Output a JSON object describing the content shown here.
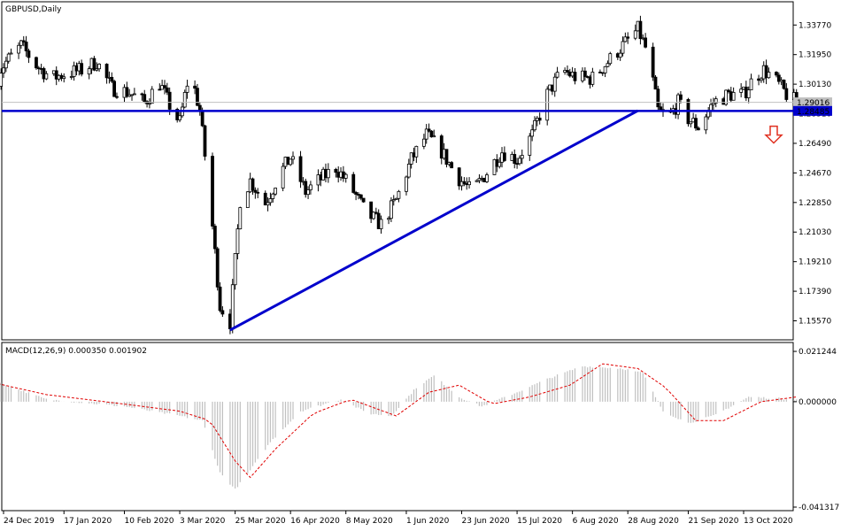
{
  "chart_data": [
    {
      "type": "candlestick",
      "title": "GBPUSD,Daily",
      "y_ticks": [
        1.3377,
        1.3195,
        1.3013,
        1.2831,
        1.2649,
        1.2467,
        1.2285,
        1.2103,
        1.1921,
        1.1739,
        1.1557
      ],
      "y_tick_labels": [
        "1.33770",
        "1.31950",
        "1.30130",
        "1.28310",
        "1.26490",
        "1.24670",
        "1.22850",
        "1.21030",
        "1.19210",
        "1.17390",
        "1.15570"
      ],
      "ylim": [
        1.144,
        1.352
      ],
      "x_tick_labels": [
        "24 Dec 2019",
        "17 Jan 2020",
        "10 Feb 2020",
        "3 Mar 2020",
        "25 Mar 2020",
        "16 Apr 2020",
        "8 May 2020",
        "1 Jun 2020",
        "23 Jun 2020",
        "15 Jul 2020",
        "6 Aug 2020",
        "28 Aug 2020",
        "21 Sep 2020",
        "13 Oct 2020"
      ],
      "price_labels": [
        {
          "value": 1.29016,
          "text": "1.29016",
          "color": "#c0c0c0"
        },
        {
          "value": 1.28485,
          "text": "1.28485",
          "color": "#0000cc"
        }
      ],
      "horizontal_lines": [
        {
          "value": 1.28485,
          "color": "#0000cc"
        },
        {
          "value": 1.29016,
          "color": "#c0c0c0"
        }
      ],
      "trendline": {
        "from": {
          "date": "23 Mar 2020",
          "value": 1.15
        },
        "to": {
          "date": "1 Sep 2020",
          "value": 1.285
        },
        "color": "#0000cc"
      },
      "annotation": {
        "type": "arrow-down",
        "color": "#e03020",
        "value": 1.27
      },
      "anchors": [
        [
          "20 Dec 2019",
          1.305
        ],
        [
          "25 Dec 2019",
          1.315
        ],
        [
          "31 Dec 2019",
          1.325
        ],
        [
          "6 Jan 2020",
          1.313
        ],
        [
          "12 Jan 2020",
          1.305
        ],
        [
          "18 Jan 2020",
          1.308
        ],
        [
          "24 Jan 2020",
          1.31
        ],
        [
          "30 Jan 2020",
          1.315
        ],
        [
          "5 Feb 2020",
          1.299
        ],
        [
          "12 Feb 2020",
          1.296
        ],
        [
          "18 Feb 2020",
          1.29
        ],
        [
          "24 Feb 2020",
          1.302
        ],
        [
          "29 Feb 2020",
          1.285
        ],
        [
          "3 Mar 2020",
          1.278
        ],
        [
          "7 Mar 2020",
          1.31
        ],
        [
          "11 Mar 2020",
          1.285
        ],
        [
          "15 Mar 2020",
          1.23
        ],
        [
          "19 Mar 2020",
          1.165
        ],
        [
          "23 Mar 2020",
          1.155
        ],
        [
          "27 Mar 2020",
          1.23
        ],
        [
          "31 Mar 2020",
          1.242
        ],
        [
          "6 Apr 2020",
          1.228
        ],
        [
          "12 Apr 2020",
          1.247
        ],
        [
          "16 Apr 2020",
          1.256
        ],
        [
          "22 Apr 2020",
          1.235
        ],
        [
          "28 Apr 2020",
          1.243
        ],
        [
          "4 May 2020",
          1.25
        ],
        [
          "10 May 2020",
          1.238
        ],
        [
          "16 May 2020",
          1.222
        ],
        [
          "22 May 2020",
          1.215
        ],
        [
          "28 May 2020",
          1.23
        ],
        [
          "3 Jun 2020",
          1.255
        ],
        [
          "9 Jun 2020",
          1.27
        ],
        [
          "15 Jun 2020",
          1.26
        ],
        [
          "21 Jun 2020",
          1.245
        ],
        [
          "27 Jun 2020",
          1.235
        ],
        [
          "3 Jul 2020",
          1.247
        ],
        [
          "9 Jul 2020",
          1.26
        ],
        [
          "15 Jul 2020",
          1.255
        ],
        [
          "21 Jul 2020",
          1.27
        ],
        [
          "27 Jul 2020",
          1.295
        ],
        [
          "2 Aug 2020",
          1.31
        ],
        [
          "8 Aug 2020",
          1.305
        ],
        [
          "14 Aug 2020",
          1.305
        ],
        [
          "20 Aug 2020",
          1.315
        ],
        [
          "26 Aug 2020",
          1.325
        ],
        [
          "1 Sep 2020",
          1.335
        ],
        [
          "5 Sep 2020",
          1.32
        ],
        [
          "9 Sep 2020",
          1.285
        ],
        [
          "13 Sep 2020",
          1.28
        ],
        [
          "17 Sep 2020",
          1.29
        ],
        [
          "21 Sep 2020",
          1.28
        ],
        [
          "25 Sep 2020",
          1.275
        ],
        [
          "1 Oct 2020",
          1.29
        ],
        [
          "7 Oct 2020",
          1.295
        ],
        [
          "13 Oct 2020",
          1.295
        ],
        [
          "17 Oct 2020",
          1.305
        ],
        [
          "21 Oct 2020",
          1.31
        ],
        [
          "25 Oct 2020",
          1.305
        ],
        [
          "30 Oct 2020",
          1.295
        ],
        [
          "3 Nov 2020",
          1.29
        ]
      ]
    },
    {
      "type": "macd",
      "label": "MACD(12,26,9) 0.000350 0.001902",
      "y_tick_labels": [
        "0.021244",
        "0.000000",
        "-0.041317"
      ],
      "y_ticks": [
        0.021244,
        0.0,
        -0.041317
      ],
      "ylim": [
        -0.046,
        0.025
      ],
      "histogram_color": "#c0c0c0",
      "signal_color": "#e00000",
      "macd_anchors": [
        [
          "20 Dec 2019",
          0.009
        ],
        [
          "10 Jan 2020",
          0.001
        ],
        [
          "10 Feb 2020",
          -0.002
        ],
        [
          "3 Mar 2020",
          -0.006
        ],
        [
          "12 Mar 2020",
          -0.008
        ],
        [
          "19 Mar 2020",
          -0.03
        ],
        [
          "25 Mar 2020",
          -0.037
        ],
        [
          "31 Mar 2020",
          -0.029
        ],
        [
          "8 Apr 2020",
          -0.017
        ],
        [
          "20 Apr 2020",
          -0.004
        ],
        [
          "6 May 2020",
          0.001
        ],
        [
          "17 May 2020",
          -0.005
        ],
        [
          "26 May 2020",
          -0.006
        ],
        [
          "5 Jun 2020",
          0.006
        ],
        [
          "12 Jun 2020",
          0.011
        ],
        [
          "22 Jun 2020",
          0.002
        ],
        [
          "1 Jul 2020",
          -0.002
        ],
        [
          "15 Jul 2020",
          0.004
        ],
        [
          "28 Jul 2020",
          0.01
        ],
        [
          "10 Aug 2020",
          0.015
        ],
        [
          "26 Aug 2020",
          0.014
        ],
        [
          "3 Sep 2020",
          0.012
        ],
        [
          "11 Sep 2020",
          -0.004
        ],
        [
          "21 Sep 2020",
          -0.009
        ],
        [
          "1 Oct 2020",
          -0.006
        ],
        [
          "15 Oct 2020",
          0.002
        ],
        [
          "3 Nov 2020",
          0.001
        ]
      ],
      "signal_anchors": [
        [
          "20 Dec 2019",
          0.008
        ],
        [
          "10 Jan 2020",
          0.003
        ],
        [
          "10 Feb 2020",
          -0.001
        ],
        [
          "3 Mar 2020",
          -0.004
        ],
        [
          "15 Mar 2020",
          -0.008
        ],
        [
          "25 Mar 2020",
          -0.025
        ],
        [
          "31 Mar 2020",
          -0.032
        ],
        [
          "10 Apr 2020",
          -0.02
        ],
        [
          "25 Apr 2020",
          -0.005
        ],
        [
          "10 May 2020",
          0.001
        ],
        [
          "28 May 2020",
          -0.006
        ],
        [
          "10 Jun 2020",
          0.004
        ],
        [
          "22 Jun 2020",
          0.007
        ],
        [
          "5 Jul 2020",
          -0.001
        ],
        [
          "20 Jul 2020",
          0.002
        ],
        [
          "5 Aug 2020",
          0.007
        ],
        [
          "18 Aug 2020",
          0.016
        ],
        [
          "1 Sep 2020",
          0.014
        ],
        [
          "12 Sep 2020",
          0.006
        ],
        [
          "24 Sep 2020",
          -0.008
        ],
        [
          "5 Oct 2020",
          -0.008
        ],
        [
          "20 Oct 2020",
          0.0
        ],
        [
          "3 Nov 2020",
          0.002
        ]
      ]
    }
  ]
}
